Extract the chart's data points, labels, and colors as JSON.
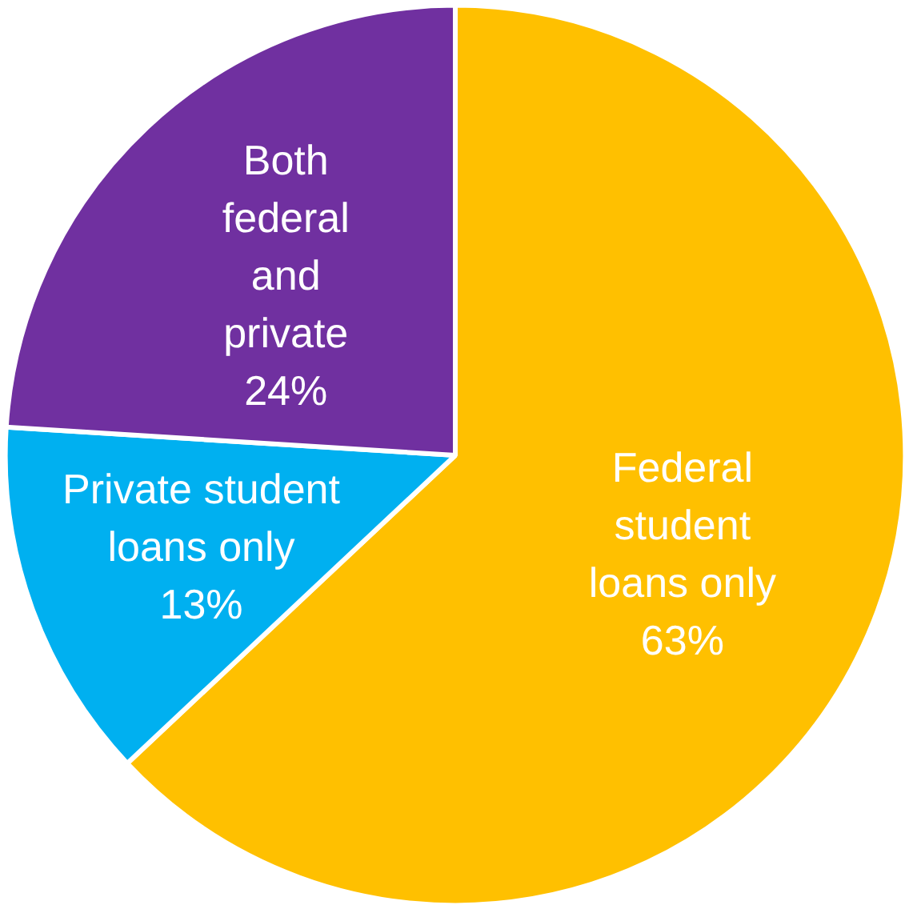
{
  "chart_data": {
    "type": "pie",
    "categories": [
      "Federal\nstudent\nloans only",
      "Private student\nloans only",
      "Both\nfederal\nand\nprivate"
    ],
    "values": [
      63,
      13,
      24
    ],
    "value_labels": [
      "63%",
      "13%",
      "24%"
    ],
    "colors": [
      "#ffc000",
      "#00b0f0",
      "#7030a0"
    ]
  }
}
